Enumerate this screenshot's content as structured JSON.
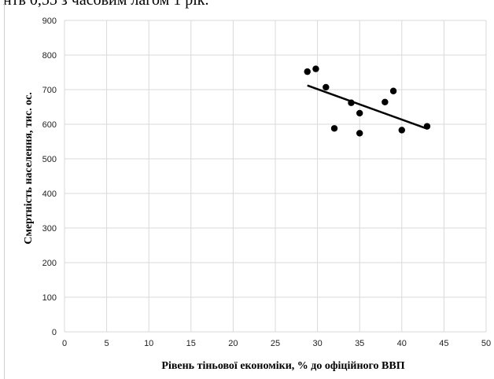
{
  "top_text": "нтв 0,55 з часовим лагом 1 рік.",
  "chart_data": {
    "type": "scatter",
    "xlabel": "Рівень тіньової економіки, % до офіційного ВВП",
    "ylabel": "Смертність населення, тис. ос.",
    "xlim": [
      0,
      50
    ],
    "ylim": [
      0,
      900
    ],
    "xticks": [
      0,
      5,
      10,
      15,
      20,
      25,
      30,
      35,
      40,
      45,
      50
    ],
    "yticks": [
      0,
      100,
      200,
      300,
      400,
      500,
      600,
      700,
      800,
      900
    ],
    "grid": true,
    "points": [
      {
        "x": 28.8,
        "y": 752
      },
      {
        "x": 29.8,
        "y": 760
      },
      {
        "x": 31.0,
        "y": 707
      },
      {
        "x": 32.0,
        "y": 588
      },
      {
        "x": 34.0,
        "y": 662
      },
      {
        "x": 35.0,
        "y": 632
      },
      {
        "x": 35.0,
        "y": 574
      },
      {
        "x": 38.0,
        "y": 664
      },
      {
        "x": 39.0,
        "y": 696
      },
      {
        "x": 40.0,
        "y": 583
      },
      {
        "x": 43.0,
        "y": 594
      }
    ],
    "trendline": {
      "x": [
        28.8,
        43.0
      ],
      "y": [
        712,
        587
      ]
    },
    "colors": {
      "points": "#000000",
      "trendline": "#000000",
      "grid": "#d9d9d9"
    }
  }
}
